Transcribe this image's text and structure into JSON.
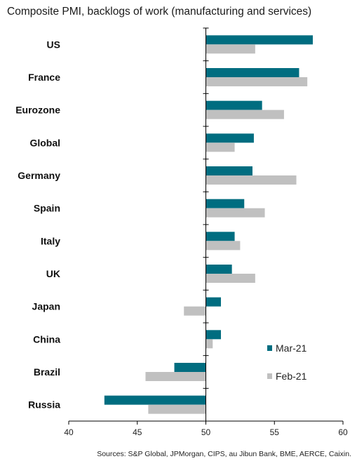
{
  "chart_data": {
    "type": "bar",
    "orientation": "horizontal",
    "title": "Composite PMI, backlogs of work (manufacturing and services)",
    "source": "Sources: S&P Global, JPMorgan, CIPS, au Jibun Bank, BME, AERCE, Caixin.",
    "baseline": 50,
    "xlim": [
      40,
      60
    ],
    "xticks": [
      40,
      45,
      50,
      55,
      60
    ],
    "grid": false,
    "legend_position": "bottom-right",
    "categories": [
      "US",
      "France",
      "Eurozone",
      "Global",
      "Germany",
      "Spain",
      "Italy",
      "UK",
      "Japan",
      "China",
      "Brazil",
      "Russia"
    ],
    "series": [
      {
        "name": "Mar-21",
        "color": "#006d80",
        "values": [
          57.8,
          56.8,
          54.1,
          53.5,
          53.4,
          52.8,
          52.1,
          51.9,
          51.1,
          51.1,
          47.7,
          42.6
        ]
      },
      {
        "name": "Feb-21",
        "color": "#c0c0c0",
        "values": [
          53.6,
          57.4,
          55.7,
          52.1,
          56.6,
          54.3,
          52.5,
          53.6,
          48.4,
          50.5,
          45.6,
          45.8
        ]
      }
    ]
  }
}
